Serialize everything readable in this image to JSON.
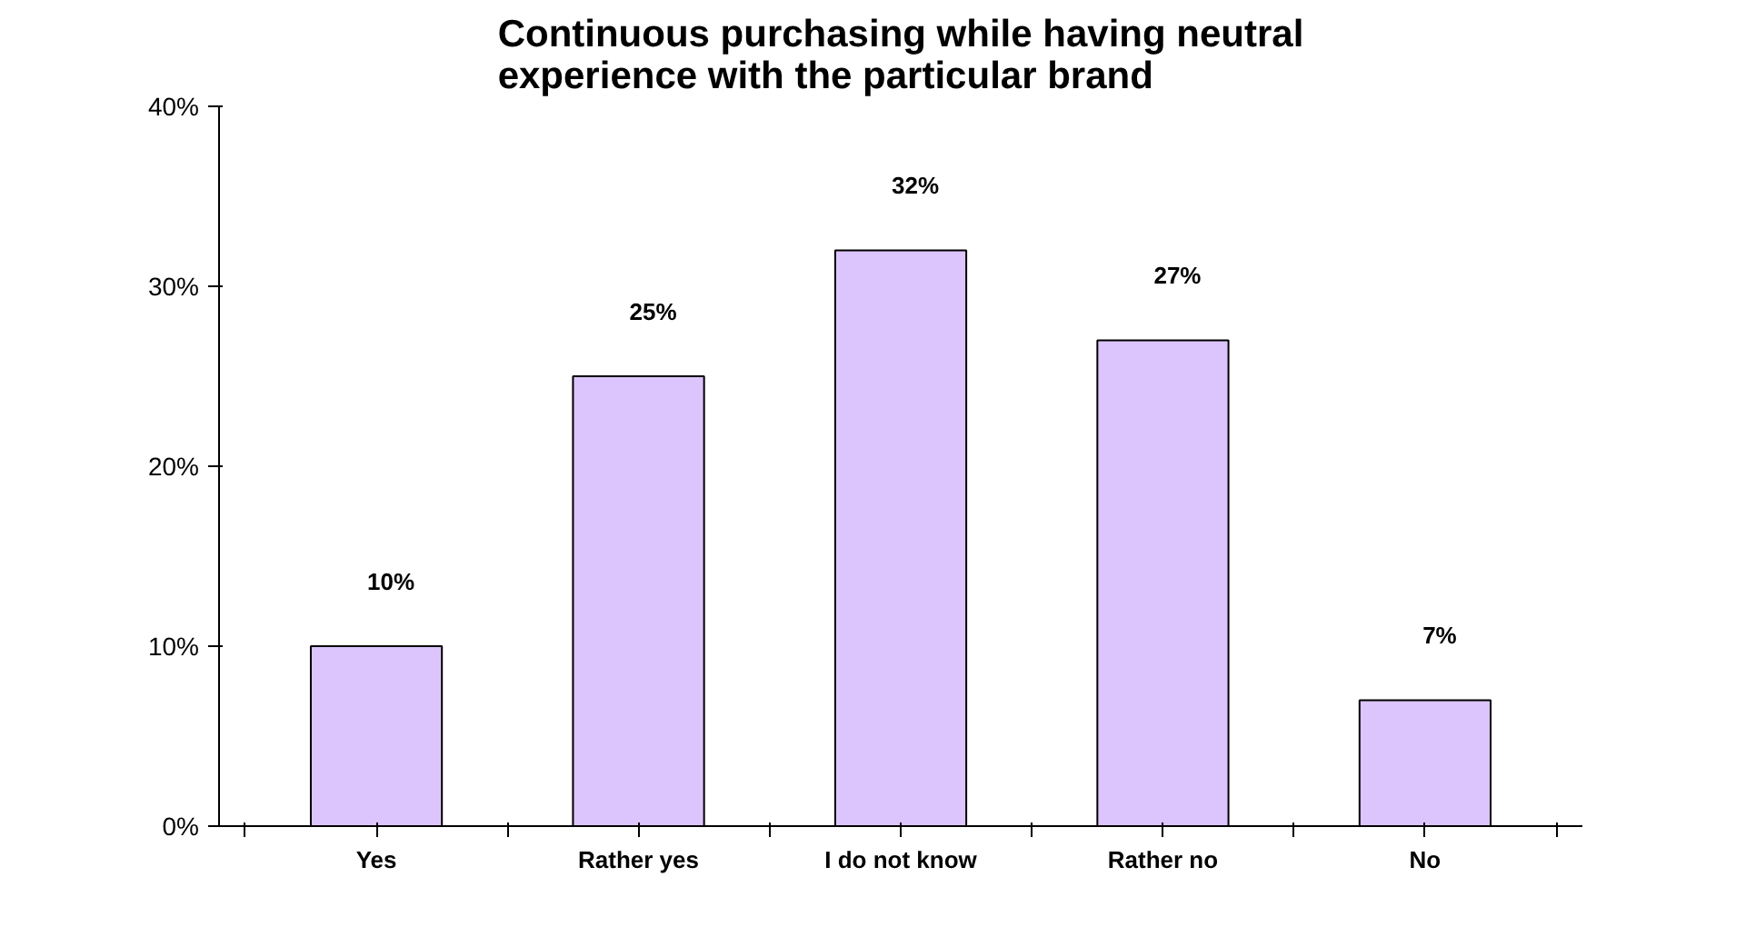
{
  "chart_data": {
    "type": "bar",
    "title": "Continuous purchasing while having neutral experience with the particular brand",
    "categories": [
      "Yes",
      "Rather yes",
      "I do not know",
      "Rather no",
      "No"
    ],
    "values": [
      10,
      25,
      32,
      27,
      7
    ],
    "color": "#dcc4fc",
    "data_labels": true,
    "value_labels": [
      "10%",
      "25%",
      "32%",
      "27%",
      "7%"
    ],
    "ylim": [
      0,
      40
    ],
    "yticks": [
      {
        "value": 0,
        "label": "0%"
      },
      {
        "value": 10,
        "label": "10%"
      },
      {
        "value": 20,
        "label": "20%"
      },
      {
        "value": 30,
        "label": "30%"
      },
      {
        "value": 40,
        "label": "40%"
      }
    ],
    "grid": false
  }
}
